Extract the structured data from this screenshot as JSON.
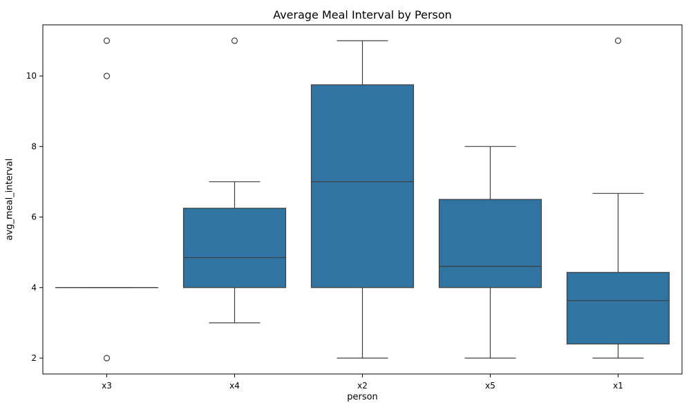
{
  "chart_data": {
    "type": "box",
    "title": "Average Meal Interval by Person",
    "xlabel": "person",
    "ylabel": "avg_meal_interval",
    "categories": [
      "x3",
      "x4",
      "x2",
      "x5",
      "x1"
    ],
    "ylim": [
      1.55,
      11.45
    ],
    "yticks": [
      2,
      4,
      6,
      8,
      10
    ],
    "grid": false,
    "colors": {
      "box_fill": "#3274a1",
      "line": "#3d3d3d"
    },
    "boxes": [
      {
        "name": "x3",
        "whisker_low": 4.0,
        "q1": 4.0,
        "median": 4.0,
        "q3": 4.0,
        "whisker_high": 4.0,
        "outliers": [
          2,
          10,
          11
        ]
      },
      {
        "name": "x4",
        "whisker_low": 3.0,
        "q1": 4.0,
        "median": 4.85,
        "q3": 6.25,
        "whisker_high": 7.0,
        "outliers": [
          11
        ]
      },
      {
        "name": "x2",
        "whisker_low": 2.0,
        "q1": 4.0,
        "median": 7.0,
        "q3": 9.75,
        "whisker_high": 11.0,
        "outliers": []
      },
      {
        "name": "x5",
        "whisker_low": 2.0,
        "q1": 4.0,
        "median": 4.6,
        "q3": 6.5,
        "whisker_high": 8.0,
        "outliers": []
      },
      {
        "name": "x1",
        "whisker_low": 2.0,
        "q1": 2.4,
        "median": 3.63,
        "q3": 4.43,
        "whisker_high": 6.67,
        "outliers": [
          11
        ]
      }
    ]
  }
}
